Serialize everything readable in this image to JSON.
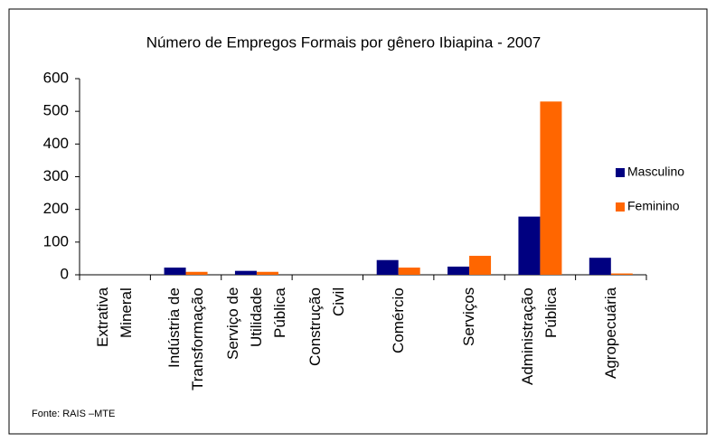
{
  "chart_data": {
    "type": "bar",
    "title": "Número de Empregos Formais por gênero Ibiapina - 2007",
    "categories": [
      "Extrativa\nMineral",
      "Indústria de\nTransformação",
      "Serviço de\nUtilidade\nPública",
      "Construção\nCivil",
      "Comércio",
      "Serviços",
      "Administração\nPública",
      "Agropecuária"
    ],
    "series": [
      {
        "name": "Masculino",
        "color": "#000080",
        "values": [
          0,
          22,
          12,
          0,
          45,
          25,
          178,
          52
        ]
      },
      {
        "name": "Feminino",
        "color": "#ff6600",
        "values": [
          0,
          9,
          9,
          0,
          22,
          58,
          530,
          4
        ]
      }
    ],
    "ylim": [
      0,
      600
    ],
    "yticks": [
      0,
      100,
      200,
      300,
      400,
      500,
      600
    ],
    "grid": false,
    "legend": "right",
    "source": "Fonte: RAIS –MTE"
  }
}
